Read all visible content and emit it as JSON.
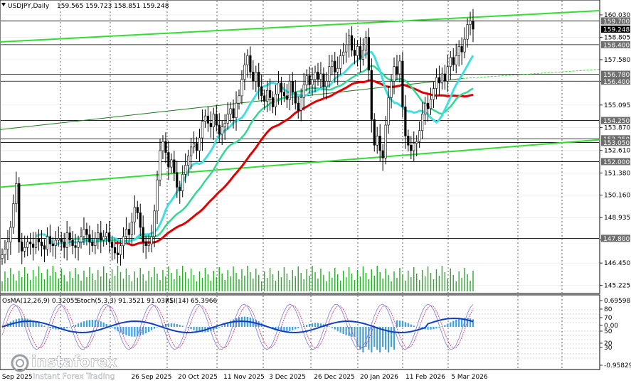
{
  "header": {
    "symbol": "USDJPY,Daily",
    "ohlc": "159.565 159.723 158.851 159.248"
  },
  "indicator_header": {
    "osma": "OsMA(12,26,9) 0.32055",
    "stoch": "Stoch(5,3,3) 91.3521 91.0371",
    "rsi": "RSI(14) 65.3966"
  },
  "watermark": {
    "brand": "instaforex",
    "tagline": "Instant Forex Trading"
  },
  "colors": {
    "bull": "#000000",
    "bear": "#000000",
    "ma_fast": "#40e0e0",
    "ma_mid": "#30d890",
    "ma_slow": "#e00000",
    "channel": "#33dd33",
    "volume": "#20b020",
    "osma": "#40a0e0",
    "stoch_main": "#1040c0",
    "stoch_signal": "#d03060",
    "price_tag": "#000000"
  },
  "chart_data": [
    {
      "type": "candlestick",
      "title": "USDJPY,Daily",
      "y_ticks": [
        "160.030",
        "158.805",
        "157.580",
        "156.400",
        "155.095",
        "153.870",
        "152.610",
        "151.380",
        "150.160",
        "148.935",
        "147.710",
        "146.450",
        "145.225"
      ],
      "ylim": [
        144.9,
        160.3
      ],
      "x_ticks": [
        "2 Sep 2025",
        "26 Sep 2025",
        "20 Oct 2025",
        "11 Nov 2025",
        "3 Dec 2025",
        "26 Dec 2025",
        "20 Jan 2026",
        "11 Feb 2026",
        "5 Mar 2026"
      ],
      "last_price": "159.248",
      "levels": [
        {
          "value": 159.7,
          "label": "159.700"
        },
        {
          "value": 158.4,
          "label": "158.400"
        },
        {
          "value": 156.78,
          "label": "156.780"
        },
        {
          "value": 156.4,
          "label": "156.400"
        },
        {
          "value": 154.25,
          "label": "154.250"
        },
        {
          "value": 153.25,
          "label": "153.250"
        },
        {
          "value": 153.05,
          "label": "153.050"
        },
        {
          "value": 152.0,
          "label": "152.000"
        },
        {
          "value": 147.8,
          "label": "147.800"
        }
      ],
      "closes": [
        146.9,
        147.2,
        147.6,
        148.4,
        149.7,
        150.8,
        147.6,
        147.1,
        147.3,
        147.6,
        147.5,
        147.3,
        147.8,
        147.6,
        147.4,
        147.2,
        147.9,
        147.5,
        147.4,
        147.7,
        147.8,
        147.6,
        147.3,
        148.1,
        147.7,
        147.4,
        147.3,
        147.6,
        147.9,
        148.3,
        148.0,
        147.6,
        147.4,
        147.8,
        148.1,
        147.7,
        147.9,
        148.1,
        147.6,
        147.3,
        147.0,
        146.9,
        147.4,
        147.9,
        148.3,
        148.0,
        148.7,
        149.5,
        149.2,
        148.4,
        147.6,
        147.4,
        147.5,
        147.9,
        149.3,
        151.0,
        152.6,
        153.1,
        152.5,
        151.7,
        152.1,
        151.4,
        150.6,
        150.4,
        151.3,
        151.8,
        152.3,
        152.8,
        153.0,
        152.6,
        153.3,
        154.2,
        154.5,
        154.1,
        153.9,
        154.6,
        154.0,
        153.5,
        153.9,
        154.1,
        154.6,
        154.9,
        154.4,
        155.2,
        155.6,
        156.5,
        157.3,
        157.8,
        156.9,
        156.4,
        156.9,
        156.1,
        155.6,
        155.3,
        155.9,
        155.5,
        155.0,
        155.7,
        156.3,
        155.8,
        155.6,
        155.4,
        156.4,
        155.8,
        155.2,
        154.8,
        155.5,
        156.2,
        156.7,
        156.2,
        156.5,
        156.9,
        156.5,
        156.8,
        156.1,
        156.4,
        157.2,
        157.5,
        156.9,
        157.1,
        157.8,
        158.0,
        158.4,
        158.9,
        158.1,
        157.8,
        158.3,
        157.6,
        158.1,
        158.8,
        157.0,
        154.3,
        152.9,
        153.4,
        152.6,
        152.2,
        154.0,
        155.5,
        156.4,
        157.2,
        156.8,
        157.5,
        155.0,
        153.4,
        152.9,
        152.6,
        153.0,
        153.1,
        153.7,
        154.6,
        155.2,
        154.9,
        155.4,
        156.0,
        156.6,
        156.3,
        156.8,
        156.4,
        157.2,
        157.7,
        157.3,
        157.8,
        158.3,
        158.0,
        158.7,
        159.5,
        159.7,
        159.25
      ],
      "ma_fast_seg": [
        [
          147.0,
          147.0
        ],
        [
          147.5,
          147.6
        ],
        [
          152.2,
          152.8
        ],
        [
          155.3,
          155.9
        ],
        [
          156.6,
          156.2
        ],
        [
          156.4,
          156.7
        ]
      ],
      "osma_ylim": [
        -0.96,
        0.7
      ],
      "osma_ticks": [
        "0.69598",
        "0.00",
        "-0.95829"
      ],
      "stoch_ticks": [
        "80",
        "20"
      ],
      "rsi_ticks": [
        "70",
        "50",
        "30"
      ]
    }
  ]
}
